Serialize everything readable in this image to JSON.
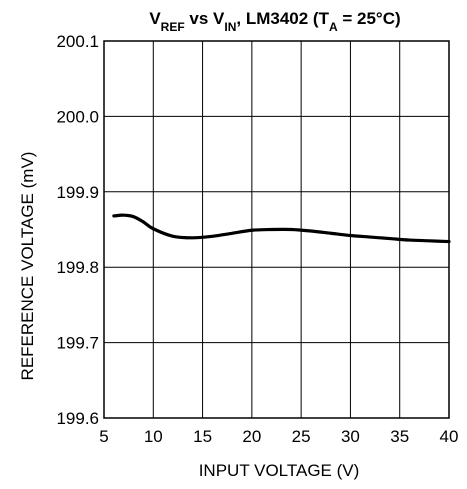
{
  "chart_data": {
    "type": "line",
    "title": {
      "parts": [
        {
          "text": "V",
          "sub": false
        },
        {
          "text": "REF",
          "sub": true
        },
        {
          "text": " vs V",
          "sub": false
        },
        {
          "text": "IN",
          "sub": true
        },
        {
          "text": ", LM3402 (T",
          "sub": false
        },
        {
          "text": "A",
          "sub": true
        },
        {
          "text": " = 25°C)",
          "sub": false
        }
      ]
    },
    "xlabel": "INPUT VOLTAGE (V)",
    "ylabel": "REFERENCE VOLTAGE (mV)",
    "xlim": [
      5,
      40
    ],
    "ylim": [
      199.6,
      200.1
    ],
    "xticks": [
      "5",
      "10",
      "15",
      "20",
      "25",
      "30",
      "35",
      "40"
    ],
    "yticks": [
      "199.6",
      "199.7",
      "199.8",
      "199.9",
      "200.0",
      "200.1"
    ],
    "grid": true,
    "series": [
      {
        "color": "#000000",
        "x": [
          6,
          7,
          8,
          9,
          10,
          12,
          14,
          16,
          18,
          20,
          22,
          24,
          26,
          28,
          30,
          32,
          34,
          36,
          38,
          40
        ],
        "y": [
          199.868,
          199.869,
          199.867,
          199.86,
          199.851,
          199.841,
          199.839,
          199.841,
          199.845,
          199.849,
          199.85,
          199.85,
          199.848,
          199.845,
          199.842,
          199.84,
          199.838,
          199.836,
          199.835,
          199.834
        ]
      }
    ]
  }
}
